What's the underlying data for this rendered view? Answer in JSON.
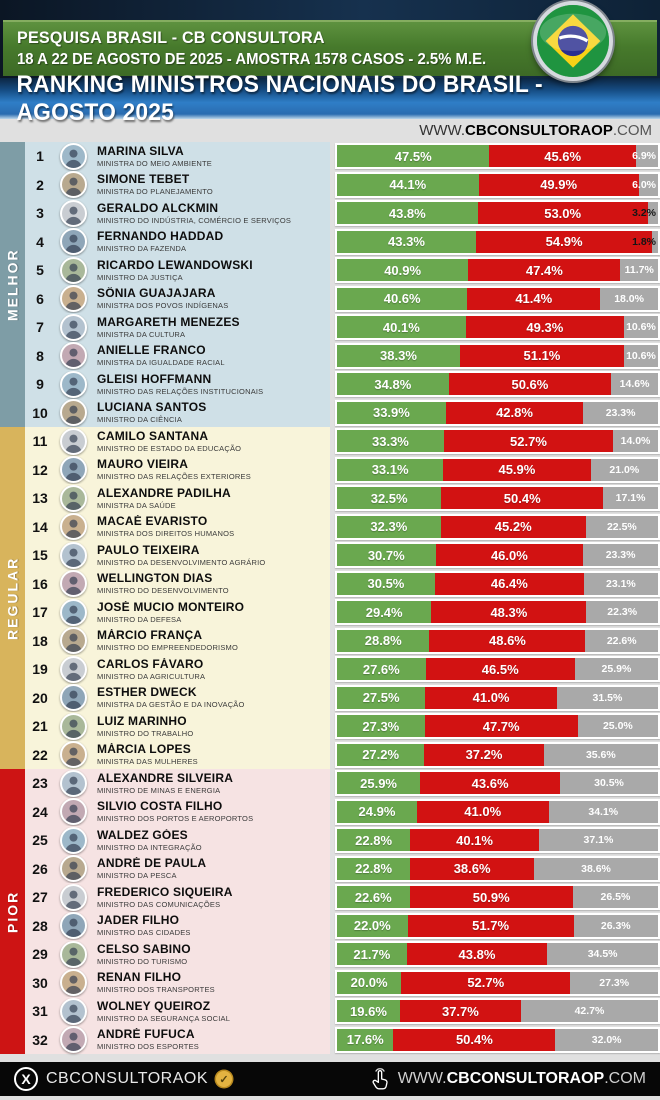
{
  "header": {
    "line1": "PESQUISA BRASIL - CB CONSULTORA",
    "line2": "18 A 22 DE AGOSTO DE 2025 - AMOSTRA 1578 CASOS - 2.5% M.E."
  },
  "ribbon_title": "RANKING MINISTROS NACIONAIS DO BRASIL - AGOSTO 2025",
  "site_line": {
    "prefix": "WWW.",
    "bold": "CBCONSULTORAOP",
    "suffix": ".COM"
  },
  "chart_data": {
    "type": "bar",
    "stacked": true,
    "orientation": "horizontal",
    "unit": "%",
    "title": "RANKING MINISTROS NACIONAIS DO BRASIL - AGOSTO 2025",
    "xlim": [
      0,
      100
    ],
    "segments": [
      {
        "key": "green",
        "color": "#6aa84f"
      },
      {
        "key": "red",
        "color": "#d21212"
      },
      {
        "key": "gray",
        "color": "#a9a9a9"
      }
    ],
    "sections": [
      {
        "label": "MELHOR",
        "color": "#7e9da6",
        "row_bg": "#cfe0e7",
        "ranks": [
          1,
          10
        ]
      },
      {
        "label": "REGULAR",
        "color": "#d8b45c",
        "row_bg": "#f8f4da",
        "ranks": [
          11,
          22
        ]
      },
      {
        "label": "PIOR",
        "color": "#cd1414",
        "row_bg": "#f6e3e3",
        "ranks": [
          23,
          32
        ]
      }
    ],
    "rows": [
      {
        "rank": 1,
        "name": "MARINA SILVA",
        "title": "MINISTRA DO MEIO AMBIENTE",
        "green": 47.5,
        "red": 45.6,
        "gray": 6.9
      },
      {
        "rank": 2,
        "name": "SIMONE TEBET",
        "title": "MINISTRA DO PLANEJAMENTO",
        "green": 44.1,
        "red": 49.9,
        "gray": 6.0
      },
      {
        "rank": 3,
        "name": "GERALDO ALCKMIN",
        "title": "MINISTRO DO INDÚSTRIA, COMÉRCIO E SERVIÇOS",
        "green": 43.8,
        "red": 53.0,
        "gray": 3.2
      },
      {
        "rank": 4,
        "name": "FERNANDO HADDAD",
        "title": "MINISTRO DA FAZENDA",
        "green": 43.3,
        "red": 54.9,
        "gray": 1.8
      },
      {
        "rank": 5,
        "name": "RICARDO LEWANDOWSKI",
        "title": "MINISTRO DA JUSTIÇA",
        "green": 40.9,
        "red": 47.4,
        "gray": 11.7
      },
      {
        "rank": 6,
        "name": "SÔNIA GUAJAJARA",
        "title": "MINISTRA DOS POVOS INDÍGENAS",
        "green": 40.6,
        "red": 41.4,
        "gray": 18.0
      },
      {
        "rank": 7,
        "name": "MARGARETH MENEZES",
        "title": "MINISTRA DA CULTURA",
        "green": 40.1,
        "red": 49.3,
        "gray": 10.6
      },
      {
        "rank": 8,
        "name": "ANIELLE FRANCO",
        "title": "MINISTRA DA IGUALDADE RACIAL",
        "green": 38.3,
        "red": 51.1,
        "gray": 10.6
      },
      {
        "rank": 9,
        "name": "GLEISI HOFFMANN",
        "title": "MINISTRO DAS RELAÇÕES INSTITUCIONAIS",
        "green": 34.8,
        "red": 50.6,
        "gray": 14.6
      },
      {
        "rank": 10,
        "name": "LUCIANA SANTOS",
        "title": "MINISTRO DA CIÊNCIA",
        "green": 33.9,
        "red": 42.8,
        "gray": 23.3
      },
      {
        "rank": 11,
        "name": "CAMILO SANTANA",
        "title": "MINISTRO DE ESTADO DA EDUCAÇÃO",
        "green": 33.3,
        "red": 52.7,
        "gray": 14.0
      },
      {
        "rank": 12,
        "name": "MAURO VIEIRA",
        "title": "MINISTRO DAS RELAÇÕES EXTERIORES",
        "green": 33.1,
        "red": 45.9,
        "gray": 21.0
      },
      {
        "rank": 13,
        "name": "ALEXANDRE PADILHA",
        "title": "MINISTRA DA SAÚDE",
        "green": 32.5,
        "red": 50.4,
        "gray": 17.1
      },
      {
        "rank": 14,
        "name": "MACAÉ EVARISTO",
        "title": "MINISTRA DOS DIREITOS HUMANOS",
        "green": 32.3,
        "red": 45.2,
        "gray": 22.5
      },
      {
        "rank": 15,
        "name": "PAULO TEIXEIRA",
        "title": "MINISTRO DA DESENVOLVIMENTO AGRÁRIO",
        "green": 30.7,
        "red": 46.0,
        "gray": 23.3
      },
      {
        "rank": 16,
        "name": "WELLINGTON DIAS",
        "title": "MINISTRO DO DESENVOLVIMENTO",
        "green": 30.5,
        "red": 46.4,
        "gray": 23.1
      },
      {
        "rank": 17,
        "name": "JOSÉ MUCIO MONTEIRO",
        "title": "MINISTRO DA DEFESA",
        "green": 29.4,
        "red": 48.3,
        "gray": 22.3
      },
      {
        "rank": 18,
        "name": "MÁRCIO FRANÇA",
        "title": "MINISTRO DO EMPREENDEDORISMO",
        "green": 28.8,
        "red": 48.6,
        "gray": 22.6
      },
      {
        "rank": 19,
        "name": "CARLOS FÁVARO",
        "title": "MINISTRO DA AGRICULTURA",
        "green": 27.6,
        "red": 46.5,
        "gray": 25.9
      },
      {
        "rank": 20,
        "name": "ESTHER DWECK",
        "title": "MINISTRA DA GESTÃO E DA INOVAÇÃO",
        "green": 27.5,
        "red": 41.0,
        "gray": 31.5
      },
      {
        "rank": 21,
        "name": "LUIZ MARINHO",
        "title": "MINISTRO DO TRABALHO",
        "green": 27.3,
        "red": 47.7,
        "gray": 25.0
      },
      {
        "rank": 22,
        "name": "MÁRCIA LOPES",
        "title": "MINISTRA DAS MULHERES",
        "green": 27.2,
        "red": 37.2,
        "gray": 35.6
      },
      {
        "rank": 23,
        "name": "ALEXANDRE SILVEIRA",
        "title": "MINISTRO DE MINAS E ENERGIA",
        "green": 25.9,
        "red": 43.6,
        "gray": 30.5
      },
      {
        "rank": 24,
        "name": "SILVIO COSTA FILHO",
        "title": "MINISTRO DOS PORTOS E AEROPORTOS",
        "green": 24.9,
        "red": 41.0,
        "gray": 34.1
      },
      {
        "rank": 25,
        "name": "WALDEZ GÓES",
        "title": "MINISTRO DA INTEGRAÇÃO",
        "green": 22.8,
        "red": 40.1,
        "gray": 37.1
      },
      {
        "rank": 26,
        "name": "ANDRÉ DE PAULA",
        "title": "MINISTRO DA PESCA",
        "green": 22.8,
        "red": 38.6,
        "gray": 38.6
      },
      {
        "rank": 27,
        "name": "FREDERICO SIQUEIRA",
        "title": "MINISTRO DAS COMUNICAÇÕES",
        "green": 22.6,
        "red": 50.9,
        "gray": 26.5
      },
      {
        "rank": 28,
        "name": "JADER FILHO",
        "title": "MINISTRO DAS CIDADES",
        "green": 22.0,
        "red": 51.7,
        "gray": 26.3
      },
      {
        "rank": 29,
        "name": "CELSO SABINO",
        "title": "MINISTRO DO TURISMO",
        "green": 21.7,
        "red": 43.8,
        "gray": 34.5
      },
      {
        "rank": 30,
        "name": "RENAN FILHO",
        "title": "MINISTRO DOS TRANSPORTES",
        "green": 20.0,
        "red": 52.7,
        "gray": 27.3
      },
      {
        "rank": 31,
        "name": "WOLNEY QUEIROZ",
        "title": "MINISTRO DA SEGURANÇA SOCIAL",
        "green": 19.6,
        "red": 37.7,
        "gray": 42.7
      },
      {
        "rank": 32,
        "name": "ANDRÉ FUFUCA",
        "title": "MINISTRO DOS ESPORTES",
        "green": 17.6,
        "red": 50.4,
        "gray": 32.0
      }
    ]
  },
  "footer": {
    "handle": "CBCONSULTORAOK",
    "x_logo_glyph": "X",
    "verified_glyph": "✓",
    "site_prefix": "WWW.",
    "site_bold": "CBCONSULTORAOP",
    "site_suffix": ".COM"
  }
}
